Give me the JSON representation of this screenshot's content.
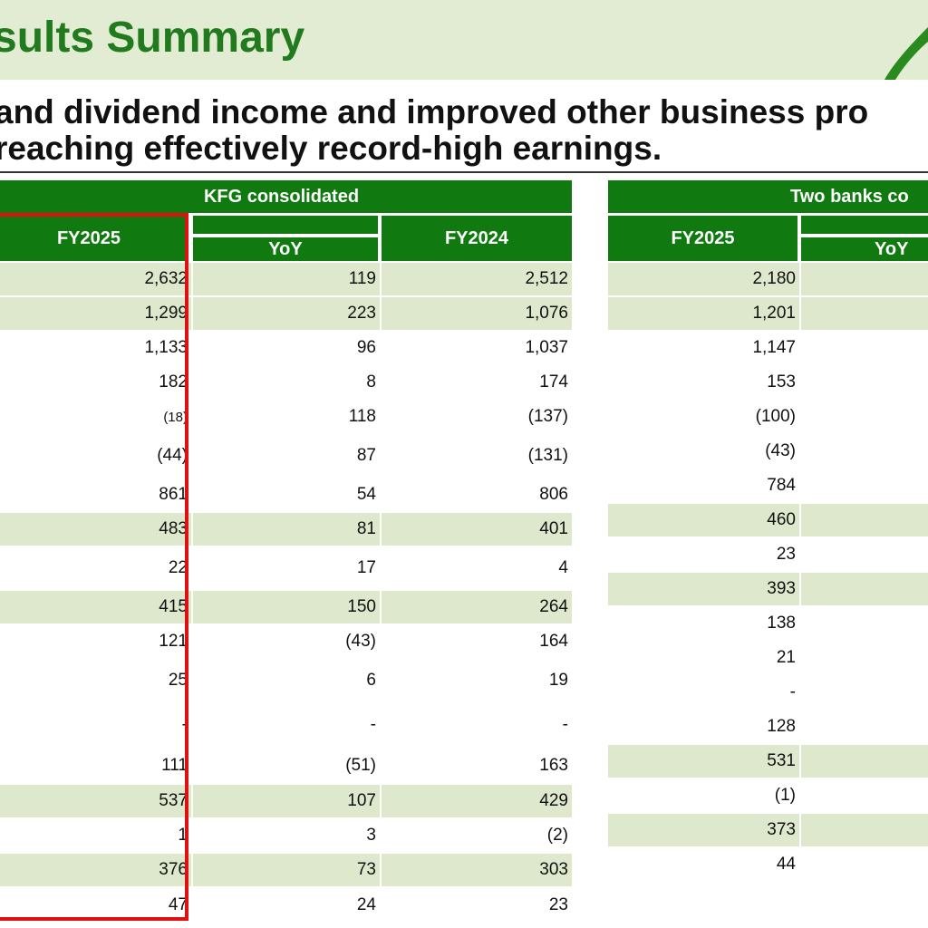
{
  "header": {
    "title": "sults Summary",
    "subtitle_line1": "and dividend income and improved other business pro",
    "subtitle_line2": "reaching effectively record-high earnings."
  },
  "kfg": {
    "group_label": "KFG consolidated",
    "col_fy2025": "FY2025",
    "col_yoy": "YoY",
    "col_fy2024": "FY2024",
    "rows": [
      {
        "fy2025": "2,632",
        "yoy": "119",
        "fy2024": "2,512"
      },
      {
        "fy2025": "1,299",
        "yoy": "223",
        "fy2024": "1,076"
      },
      {
        "fy2025": "1,133",
        "yoy": "96",
        "fy2024": "1,037"
      },
      {
        "fy2025": "182",
        "yoy": "8",
        "fy2024": "174"
      },
      {
        "fy2025": "(18)",
        "yoy": "118",
        "fy2024": "(137)"
      },
      {
        "fy2025": "(44)",
        "yoy": "87",
        "fy2024": "(131)"
      },
      {
        "fy2025": "861",
        "yoy": "54",
        "fy2024": "806"
      },
      {
        "fy2025": "483",
        "yoy": "81",
        "fy2024": "401"
      },
      {
        "fy2025": "22",
        "yoy": "17",
        "fy2024": "4"
      },
      {
        "fy2025": "415",
        "yoy": "150",
        "fy2024": "264"
      },
      {
        "fy2025": "121",
        "yoy": "(43)",
        "fy2024": "164"
      },
      {
        "fy2025": "25",
        "yoy": "6",
        "fy2024": "19"
      },
      {
        "fy2025": "-",
        "yoy": "-",
        "fy2024": "-"
      },
      {
        "fy2025": "111",
        "yoy": "(51)",
        "fy2024": "163"
      },
      {
        "fy2025": "537",
        "yoy": "107",
        "fy2024": "429"
      },
      {
        "fy2025": "1",
        "yoy": "3",
        "fy2024": "(2)"
      },
      {
        "fy2025": "376",
        "yoy": "73",
        "fy2024": "303"
      },
      {
        "fy2025": "47",
        "yoy": "24",
        "fy2024": "23"
      }
    ]
  },
  "banks": {
    "group_label": "Two banks co",
    "col_fy2025": "FY2025",
    "col_yoy": "YoY",
    "rows": [
      {
        "fy2025": "2,180"
      },
      {
        "fy2025": "1,201"
      },
      {
        "fy2025": "1,147"
      },
      {
        "fy2025": "153"
      },
      {
        "fy2025": "(100)"
      },
      {
        "fy2025": "(43)"
      },
      {
        "fy2025": "784"
      },
      {
        "fy2025": "460"
      },
      {
        "fy2025": "23"
      },
      {
        "fy2025": "393"
      },
      {
        "fy2025": "138"
      },
      {
        "fy2025": "21"
      },
      {
        "fy2025": "-"
      },
      {
        "fy2025": "128"
      },
      {
        "fy2025": "531"
      },
      {
        "fy2025": "(1)"
      },
      {
        "fy2025": "373"
      },
      {
        "fy2025": "44"
      }
    ]
  },
  "colors": {
    "accent_green": "#107a10",
    "title_green": "#217a1e",
    "band_light": "#e2ecd2",
    "row_shade": "#dde8cc",
    "highlight_red": "#e01010"
  }
}
